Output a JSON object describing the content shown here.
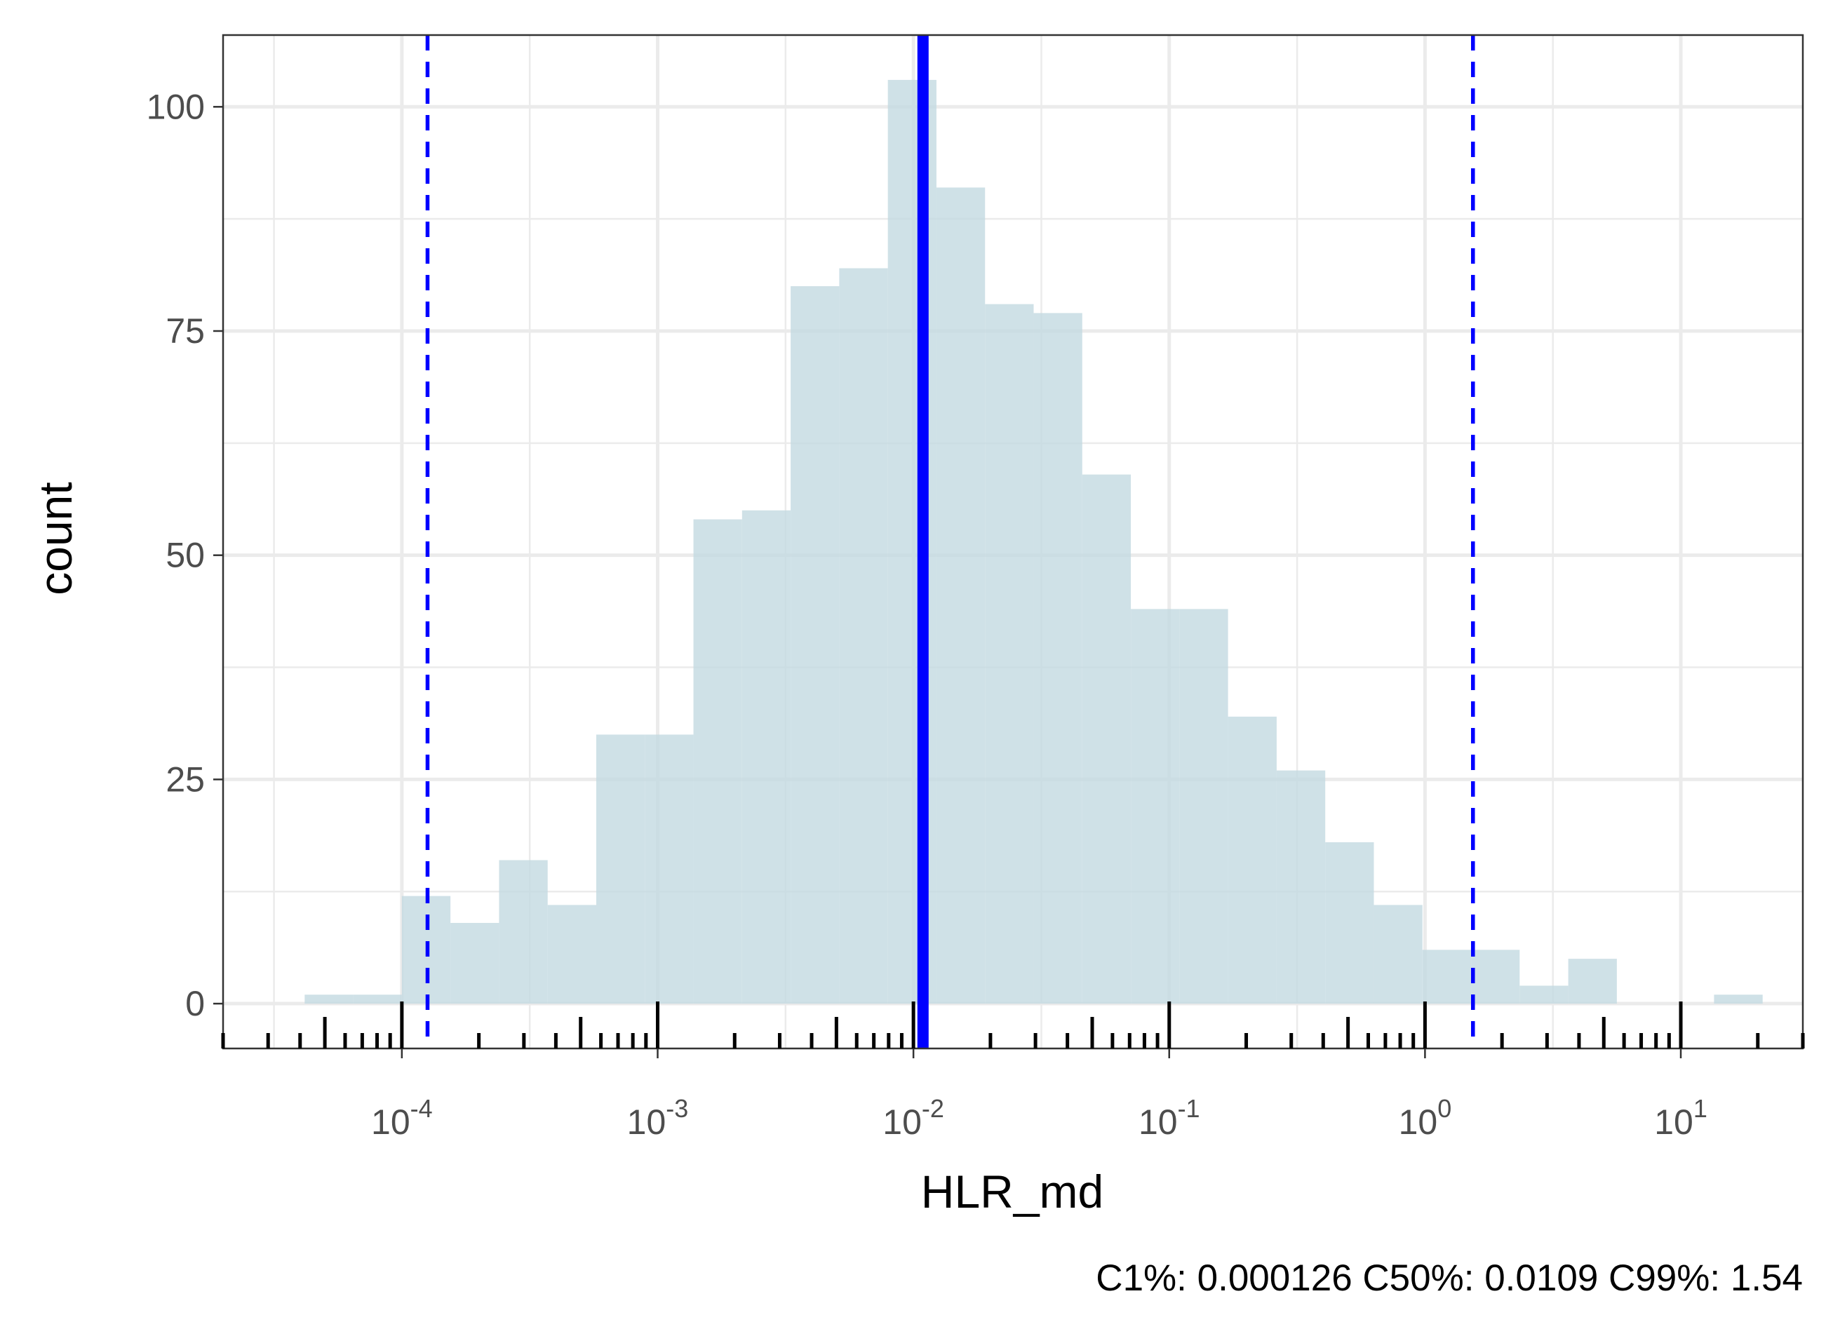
{
  "chart_data": {
    "type": "histogram",
    "xscale": "log10",
    "xlabel": "HLR_md",
    "ylabel": "count",
    "xlim": [
      2e-05,
      30
    ],
    "ylim": [
      -5,
      108
    ],
    "grid": true,
    "x_ticks": [
      {
        "base": "10",
        "exp": "-4",
        "value": 0.0001
      },
      {
        "base": "10",
        "exp": "-3",
        "value": 0.001
      },
      {
        "base": "10",
        "exp": "-2",
        "value": 0.01
      },
      {
        "base": "10",
        "exp": "-1",
        "value": 0.1
      },
      {
        "base": "10",
        "exp": "0",
        "value": 1
      },
      {
        "base": "10",
        "exp": "1",
        "value": 10
      }
    ],
    "y_ticks": [
      {
        "label": "0",
        "value": 0
      },
      {
        "label": "25",
        "value": 25
      },
      {
        "label": "50",
        "value": 50
      },
      {
        "label": "75",
        "value": 75
      },
      {
        "label": "100",
        "value": 100
      }
    ],
    "bin_log_edges": [
      -4.38,
      -4.19,
      -4.0,
      -3.81,
      -3.62,
      -3.43,
      -3.24,
      -3.05,
      -2.86,
      -2.67,
      -2.48,
      -2.29,
      -2.1,
      -1.91,
      -1.72,
      -1.53,
      -1.34,
      -1.15,
      -0.96,
      -0.77,
      -0.58,
      -0.39,
      -0.2,
      -0.01,
      0.18,
      0.37,
      0.56,
      0.75,
      0.94,
      1.13,
      1.32
    ],
    "counts": [
      1,
      1,
      12,
      9,
      16,
      11,
      30,
      30,
      54,
      55,
      80,
      82,
      103,
      91,
      78,
      77,
      59,
      44,
      44,
      32,
      26,
      18,
      11,
      6,
      6,
      2,
      5,
      0,
      0,
      1
    ],
    "bar_color": "#c3d9e1",
    "quantile_lines": [
      {
        "name": "C1%",
        "value": 0.000126,
        "style": "dashed",
        "color": "#0000ff"
      },
      {
        "name": "C50%",
        "value": 0.0109,
        "style": "solid",
        "color": "#0000ff"
      },
      {
        "name": "C99%",
        "value": 1.54,
        "style": "dashed",
        "color": "#0000ff"
      }
    ],
    "caption": "C1%: 0.000126 C50%: 0.0109 C99%: 1.54"
  }
}
